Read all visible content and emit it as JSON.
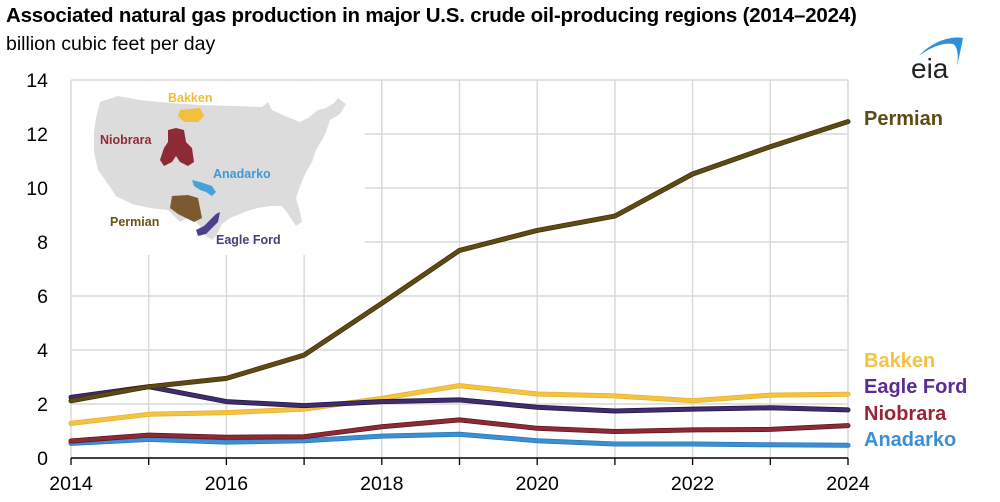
{
  "header": {
    "title": "Associated natural gas production in major U.S. crude oil-producing regions (2014–2024)",
    "subtitle": "billion cubic feet per day",
    "logo_text": "eia",
    "logo_icon": "eia-logo-icon"
  },
  "colors": {
    "Permian": "#5E4B14",
    "Bakken": "#F5C242",
    "Eagle Ford": "#3F2D6E",
    "Eagle Ford label": "#5C2D91",
    "Niobrara": "#8E2A36",
    "Niobrara label": "#9B2335",
    "Anadarko": "#3C8FD3",
    "grid": "#D9D9D9",
    "map_land": "#DCDCDC"
  },
  "map_inset": {
    "description": "Map of contiguous United States highlighting producing regions",
    "labels": [
      "Bakken",
      "Niobrara",
      "Anadarko",
      "Permian",
      "Eagle Ford"
    ]
  },
  "chart_data": {
    "type": "line",
    "title": "Associated natural gas production in major U.S. crude oil-producing regions (2014–2024)",
    "subtitle": "billion cubic feet per day",
    "xlabel": "",
    "ylabel": "billion cubic feet per day",
    "x": [
      2014,
      2015,
      2016,
      2017,
      2018,
      2019,
      2020,
      2021,
      2022,
      2023,
      2024
    ],
    "xlim": [
      2014,
      2024
    ],
    "ylim": [
      0,
      14
    ],
    "x_ticks": [
      2014,
      2015,
      2016,
      2017,
      2018,
      2019,
      2020,
      2021,
      2022,
      2023,
      2024
    ],
    "x_tick_labels": [
      "2014",
      "2016",
      "2018",
      "2020",
      "2022",
      "2024"
    ],
    "y_ticks": [
      0,
      2,
      4,
      6,
      8,
      10,
      12,
      14
    ],
    "y_tick_labels": [
      "0",
      "2",
      "4",
      "6",
      "8",
      "10",
      "12",
      "14"
    ],
    "grid": true,
    "legend": "direct labels at right end of lines",
    "series": [
      {
        "name": "Permian",
        "values": [
          2.12,
          2.64,
          2.95,
          3.81,
          5.73,
          7.69,
          8.43,
          8.96,
          10.52,
          11.53,
          12.46
        ]
      },
      {
        "name": "Bakken",
        "values": [
          1.28,
          1.62,
          1.68,
          1.81,
          2.21,
          2.68,
          2.37,
          2.3,
          2.12,
          2.33,
          2.36
        ]
      },
      {
        "name": "Eagle Ford",
        "values": [
          2.25,
          2.64,
          2.09,
          1.94,
          2.09,
          2.15,
          1.88,
          1.74,
          1.81,
          1.86,
          1.78
        ]
      },
      {
        "name": "Niobrara",
        "values": [
          0.63,
          0.85,
          0.77,
          0.79,
          1.16,
          1.41,
          1.1,
          0.98,
          1.04,
          1.06,
          1.2
        ]
      },
      {
        "name": "Anadarko",
        "values": [
          0.54,
          0.69,
          0.59,
          0.64,
          0.81,
          0.88,
          0.64,
          0.52,
          0.52,
          0.49,
          0.47
        ]
      }
    ],
    "end_labels": [
      "Permian",
      "Bakken",
      "Eagle Ford",
      "Niobrara",
      "Anadarko"
    ]
  }
}
